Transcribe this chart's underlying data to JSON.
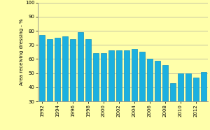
{
  "years": [
    1992,
    1993,
    1994,
    1995,
    1996,
    1997,
    1998,
    1999,
    2000,
    2001,
    2002,
    2003,
    2004,
    2005,
    2006,
    2007,
    2008,
    2009,
    2010,
    2011,
    2012,
    2013
  ],
  "values": [
    77,
    74,
    75,
    76,
    74,
    79,
    74,
    64,
    64,
    66,
    66,
    66,
    67,
    65,
    60,
    59,
    56,
    43,
    50,
    50,
    47,
    51
  ],
  "bar_color": "#1BB0E0",
  "bar_edge_color": "#1090C0",
  "background_color": "#FFFFAA",
  "ylabel": "Area receiving dressing - %",
  "ylim": [
    30,
    100
  ],
  "yticks": [
    30,
    40,
    50,
    60,
    70,
    80,
    90,
    100
  ],
  "xtick_years": [
    1992,
    1994,
    1996,
    1998,
    2000,
    2002,
    2004,
    2006,
    2008,
    2010,
    2012
  ],
  "axes_color": "#888888",
  "grid_color": "#999999",
  "bar_width": 0.8
}
